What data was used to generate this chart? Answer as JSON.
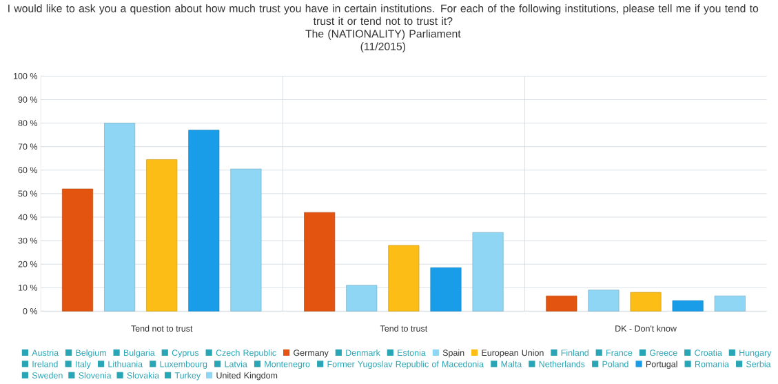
{
  "chart_data": {
    "type": "bar",
    "title": "I would like to ask you a question about how much trust you have in certain institutions. For each of the following institutions, please tell me if you tend to trust it or tend not to trust it?",
    "subtitle": "The (NATIONALITY) Parliament",
    "annotations": [
      "(11/2015)"
    ],
    "categories": [
      "Tend not to trust",
      "Tend to trust",
      "DK - Don't know"
    ],
    "ylim": [
      0,
      100
    ],
    "yticks": [
      {
        "value": 0,
        "label": "0 %"
      },
      {
        "value": 10,
        "label": "10 %"
      },
      {
        "value": 20,
        "label": "20 %"
      },
      {
        "value": 30,
        "label": "30 %"
      },
      {
        "value": 40,
        "label": "40 %"
      },
      {
        "value": 50,
        "label": "50 %"
      },
      {
        "value": 60,
        "label": "60 %"
      },
      {
        "value": 70,
        "label": "70 %"
      },
      {
        "value": 80,
        "label": "80 %"
      },
      {
        "value": 90,
        "label": "90 %"
      },
      {
        "value": 100,
        "label": "100 %"
      }
    ],
    "grid": true,
    "legend": "bottom",
    "series": [
      {
        "name": "Austria",
        "color": "#2aa5b5",
        "values": [
          null,
          null,
          null
        ]
      },
      {
        "name": "Belgium",
        "color": "#2aa5b5",
        "values": [
          null,
          null,
          null
        ]
      },
      {
        "name": "Bulgaria",
        "color": "#2aa5b5",
        "values": [
          null,
          null,
          null
        ]
      },
      {
        "name": "Cyprus",
        "color": "#2aa5b5",
        "values": [
          null,
          null,
          null
        ]
      },
      {
        "name": "Czech Republic",
        "color": "#2aa5b5",
        "values": [
          null,
          null,
          null
        ]
      },
      {
        "name": "Germany",
        "color": "#e2540f",
        "values": [
          52,
          42,
          6.5
        ]
      },
      {
        "name": "Denmark",
        "color": "#2aa5b5",
        "values": [
          null,
          null,
          null
        ]
      },
      {
        "name": "Estonia",
        "color": "#2aa5b5",
        "values": [
          null,
          null,
          null
        ]
      },
      {
        "name": "Spain",
        "color": "#8fd6f5",
        "values": [
          80,
          11,
          9
        ]
      },
      {
        "name": "European Union",
        "color": "#fbbd16",
        "values": [
          64.5,
          28,
          8
        ]
      },
      {
        "name": "Finland",
        "color": "#2aa5b5",
        "values": [
          null,
          null,
          null
        ]
      },
      {
        "name": "France",
        "color": "#2aa5b5",
        "values": [
          null,
          null,
          null
        ]
      },
      {
        "name": "Greece",
        "color": "#2aa5b5",
        "values": [
          null,
          null,
          null
        ]
      },
      {
        "name": "Croatia",
        "color": "#2aa5b5",
        "values": [
          null,
          null,
          null
        ]
      },
      {
        "name": "Hungary",
        "color": "#2aa5b5",
        "values": [
          null,
          null,
          null
        ]
      },
      {
        "name": "Ireland",
        "color": "#2aa5b5",
        "values": [
          null,
          null,
          null
        ]
      },
      {
        "name": "Italy",
        "color": "#2aa5b5",
        "values": [
          null,
          null,
          null
        ]
      },
      {
        "name": "Lithuania",
        "color": "#2aa5b5",
        "values": [
          null,
          null,
          null
        ]
      },
      {
        "name": "Luxembourg",
        "color": "#2aa5b5",
        "values": [
          null,
          null,
          null
        ]
      },
      {
        "name": "Latvia",
        "color": "#2aa5b5",
        "values": [
          null,
          null,
          null
        ]
      },
      {
        "name": "Montenegro",
        "color": "#2aa5b5",
        "values": [
          null,
          null,
          null
        ]
      },
      {
        "name": "Former Yugoslav Republic of Macedonia",
        "color": "#2aa5b5",
        "values": [
          null,
          null,
          null
        ]
      },
      {
        "name": "Malta",
        "color": "#2aa5b5",
        "values": [
          null,
          null,
          null
        ]
      },
      {
        "name": "Netherlands",
        "color": "#2aa5b5",
        "values": [
          null,
          null,
          null
        ]
      },
      {
        "name": "Poland",
        "color": "#2aa5b5",
        "values": [
          null,
          null,
          null
        ]
      },
      {
        "name": "Portugal",
        "color": "#1a9de8",
        "values": [
          77,
          18.5,
          4.5
        ]
      },
      {
        "name": "Romania",
        "color": "#2aa5b5",
        "values": [
          null,
          null,
          null
        ]
      },
      {
        "name": "Serbia",
        "color": "#2aa5b5",
        "values": [
          null,
          null,
          null
        ]
      },
      {
        "name": "Sweden",
        "color": "#2aa5b5",
        "values": [
          null,
          null,
          null
        ]
      },
      {
        "name": "Slovenia",
        "color": "#2aa5b5",
        "values": [
          null,
          null,
          null
        ]
      },
      {
        "name": "Slovakia",
        "color": "#2aa5b5",
        "values": [
          null,
          null,
          null
        ]
      },
      {
        "name": "Turkey",
        "color": "#2aa5b5",
        "values": [
          null,
          null,
          null
        ]
      },
      {
        "name": "United Kingdom",
        "color": "#8fd6f5",
        "values": [
          60.5,
          33.5,
          6.5
        ]
      }
    ]
  }
}
